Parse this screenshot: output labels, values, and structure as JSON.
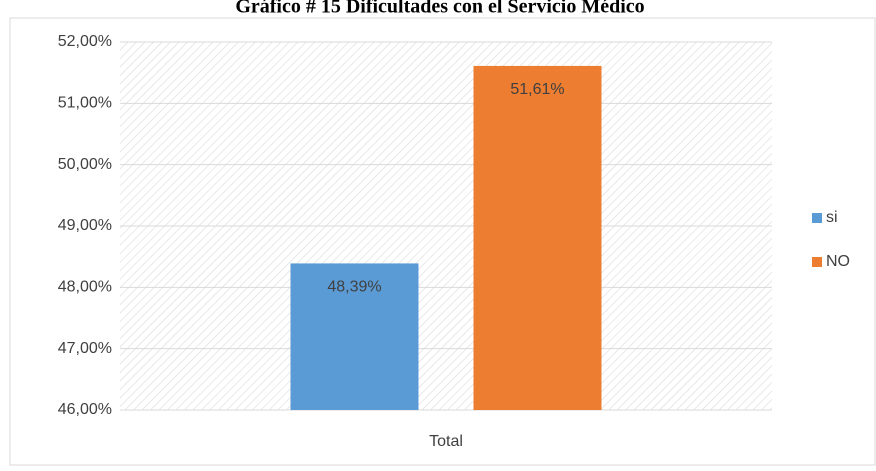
{
  "chart_data": {
    "type": "bar",
    "title": "Gráfico # 15 Dificultades con el Servicio Médico",
    "categories": [
      "Total"
    ],
    "series": [
      {
        "name": "si",
        "color": "#5b9bd5",
        "values": [
          48.39
        ],
        "value_labels": [
          "48,39%"
        ]
      },
      {
        "name": "NO",
        "color": "#ed7d31",
        "values": [
          51.61
        ],
        "value_labels": [
          "51,61%"
        ]
      }
    ],
    "ylim": [
      46,
      52
    ],
    "yticks": [
      {
        "value": 46,
        "label": "46,00%"
      },
      {
        "value": 47,
        "label": "47,00%"
      },
      {
        "value": 48,
        "label": "48,00%"
      },
      {
        "value": 49,
        "label": "49,00%"
      },
      {
        "value": 50,
        "label": "50,00%"
      },
      {
        "value": 51,
        "label": "51,00%"
      },
      {
        "value": 52,
        "label": "52,00%"
      }
    ],
    "grid": true,
    "legend": "right"
  }
}
